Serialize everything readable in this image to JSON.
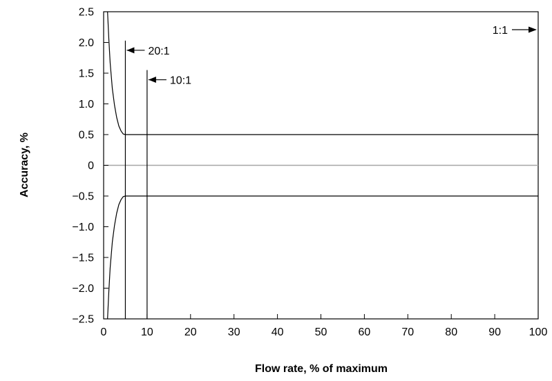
{
  "chart_data": {
    "type": "line",
    "title": "",
    "xlabel": "Flow rate, % of maximum",
    "ylabel": "Accuracy, %",
    "xlim": [
      0,
      100
    ],
    "ylim": [
      -2.5,
      2.5
    ],
    "x_ticks": [
      0,
      10,
      20,
      30,
      40,
      50,
      60,
      70,
      80,
      90,
      100
    ],
    "x_tick_labels": [
      "0",
      "10",
      "20",
      "30",
      "40",
      "50",
      "60",
      "70",
      "80",
      "90",
      "100"
    ],
    "y_ticks": [
      2.5,
      2.0,
      1.5,
      1.0,
      0.5,
      0,
      -0.5,
      -1.0,
      -1.5,
      -2.0,
      -2.5
    ],
    "y_tick_labels": [
      "2.5",
      "2.0",
      "1.5",
      "1.0",
      "0.5",
      "0",
      "−0.5",
      "−1.0",
      "−1.5",
      "−2.0",
      "−2.5"
    ],
    "grid": false,
    "series": [
      {
        "role": "upper-accuracy-envelope",
        "x": [
          0.9,
          1.0,
          1.2,
          1.5,
          2.0,
          2.5,
          3.0,
          3.5,
          4.0,
          4.5,
          5.0,
          100
        ],
        "y": [
          2.5,
          2.35,
          2.05,
          1.67,
          1.25,
          0.98,
          0.78,
          0.64,
          0.56,
          0.51,
          0.5,
          0.5
        ]
      },
      {
        "role": "lower-accuracy-envelope",
        "x": [
          0.9,
          1.0,
          1.2,
          1.5,
          2.0,
          2.5,
          3.0,
          3.5,
          4.0,
          4.5,
          5.0,
          100
        ],
        "y": [
          -2.5,
          -2.35,
          -2.05,
          -1.67,
          -1.25,
          -0.98,
          -0.78,
          -0.64,
          -0.56,
          -0.51,
          -0.5,
          -0.5
        ]
      }
    ],
    "zero_line": {
      "y": 0,
      "color": "#a6a6a6"
    },
    "markers": [
      {
        "x": 5,
        "y_top": 2.03,
        "label": "20:1"
      },
      {
        "x": 10,
        "y_top": 1.55,
        "label": "10:1"
      },
      {
        "x": 100,
        "y_top": 2.5,
        "label": "1:1"
      }
    ],
    "colors": {
      "curve": "#000000",
      "zero_line": "#a6a6a6",
      "frame": "#000000"
    }
  }
}
